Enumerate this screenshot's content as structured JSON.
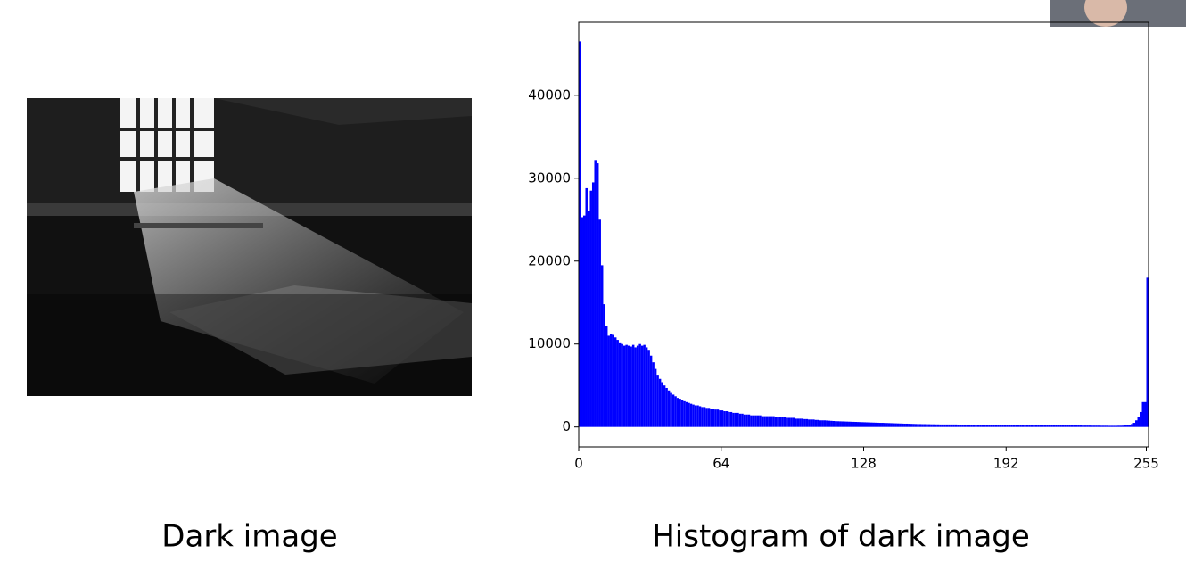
{
  "image_caption": "Dark image",
  "chart_data": {
    "type": "histogram",
    "title": "Histogram of dark image",
    "color": "#0000ff",
    "bins": [
      0,
      1,
      2,
      3,
      4,
      5,
      6,
      7,
      8,
      9,
      10,
      11,
      12,
      13,
      14,
      15,
      16,
      17,
      18,
      19,
      20,
      21,
      22,
      23,
      24,
      25,
      26,
      27,
      28,
      29,
      30,
      31,
      32,
      33,
      34,
      35,
      36,
      37,
      38,
      39,
      40,
      41,
      42,
      43,
      44,
      45,
      46,
      47,
      48,
      49,
      50,
      51,
      52,
      53,
      54,
      55,
      56,
      57,
      58,
      59,
      60,
      61,
      62,
      63,
      64,
      65,
      66,
      67,
      68,
      69,
      70,
      71,
      72,
      73,
      74,
      75,
      76,
      77,
      78,
      79,
      80,
      81,
      82,
      83,
      84,
      85,
      86,
      87,
      88,
      89,
      90,
      91,
      92,
      93,
      94,
      95,
      96,
      97,
      98,
      99,
      100,
      101,
      102,
      103,
      104,
      105,
      106,
      107,
      108,
      109,
      110,
      111,
      112,
      113,
      114,
      115,
      116,
      117,
      118,
      119,
      120,
      121,
      122,
      123,
      124,
      125,
      126,
      127,
      128,
      129,
      130,
      131,
      132,
      133,
      134,
      135,
      136,
      137,
      138,
      139,
      140,
      141,
      142,
      143,
      144,
      145,
      146,
      147,
      148,
      149,
      150,
      151,
      152,
      153,
      154,
      155,
      156,
      157,
      158,
      159,
      160,
      161,
      162,
      163,
      164,
      165,
      166,
      167,
      168,
      169,
      170,
      171,
      172,
      173,
      174,
      175,
      176,
      177,
      178,
      179,
      180,
      181,
      182,
      183,
      184,
      185,
      186,
      187,
      188,
      189,
      190,
      191,
      192,
      193,
      194,
      195,
      196,
      197,
      198,
      199,
      200,
      201,
      202,
      203,
      204,
      205,
      206,
      207,
      208,
      209,
      210,
      211,
      212,
      213,
      214,
      215,
      216,
      217,
      218,
      219,
      220,
      221,
      222,
      223,
      224,
      225,
      226,
      227,
      228,
      229,
      230,
      231,
      232,
      233,
      234,
      235,
      236,
      237,
      238,
      239,
      240,
      241,
      242,
      243,
      244,
      245,
      246,
      247,
      248,
      249,
      250,
      251,
      252,
      253,
      254,
      255,
      256
    ],
    "values": [
      46500,
      25300,
      25500,
      28800,
      26000,
      28500,
      29500,
      32200,
      31800,
      25000,
      19500,
      14800,
      12200,
      11000,
      11200,
      11100,
      10800,
      10500,
      10200,
      10000,
      9800,
      9900,
      9800,
      9700,
      9900,
      9600,
      9800,
      10000,
      9800,
      9900,
      9600,
      9300,
      8600,
      7800,
      7000,
      6300,
      5800,
      5400,
      5000,
      4700,
      4400,
      4100,
      3900,
      3700,
      3500,
      3400,
      3200,
      3100,
      3000,
      2900,
      2800,
      2700,
      2600,
      2600,
      2500,
      2400,
      2400,
      2300,
      2300,
      2200,
      2200,
      2100,
      2100,
      2000,
      2000,
      1900,
      1900,
      1800,
      1800,
      1700,
      1700,
      1700,
      1600,
      1600,
      1500,
      1500,
      1500,
      1400,
      1400,
      1400,
      1400,
      1400,
      1300,
      1300,
      1300,
      1300,
      1300,
      1300,
      1200,
      1200,
      1200,
      1200,
      1200,
      1100,
      1100,
      1100,
      1100,
      1000,
      1000,
      1000,
      1000,
      950,
      950,
      900,
      900,
      900,
      850,
      850,
      800,
      800,
      800,
      780,
      760,
      740,
      720,
      700,
      690,
      680,
      670,
      660,
      650,
      640,
      630,
      620,
      610,
      600,
      590,
      580,
      570,
      560,
      550,
      540,
      530,
      520,
      510,
      500,
      500,
      490,
      480,
      470,
      460,
      450,
      440,
      430,
      420,
      410,
      400,
      400,
      390,
      380,
      370,
      360,
      350,
      350,
      340,
      340,
      330,
      330,
      320,
      320,
      310,
      310,
      300,
      300,
      300,
      300,
      300,
      300,
      300,
      300,
      290,
      290,
      290,
      290,
      290,
      290,
      280,
      280,
      280,
      280,
      280,
      280,
      280,
      280,
      280,
      280,
      270,
      270,
      270,
      270,
      270,
      270,
      260,
      260,
      260,
      260,
      250,
      250,
      250,
      250,
      250,
      240,
      240,
      240,
      230,
      230,
      230,
      220,
      220,
      220,
      220,
      210,
      210,
      210,
      200,
      200,
      200,
      200,
      190,
      190,
      190,
      190,
      180,
      180,
      180,
      180,
      170,
      170,
      170,
      170,
      160,
      160,
      160,
      160,
      150,
      150,
      150,
      150,
      140,
      140,
      140,
      140,
      150,
      150,
      160,
      180,
      200,
      250,
      350,
      500,
      800,
      1200,
      1800,
      3000,
      3000,
      18000
    ],
    "xlim": [
      0,
      256
    ],
    "xticks": [
      0,
      64,
      128,
      192,
      255
    ],
    "ylim": [
      -2400,
      48800
    ],
    "yticks": [
      0,
      10000,
      20000,
      30000,
      40000
    ]
  }
}
